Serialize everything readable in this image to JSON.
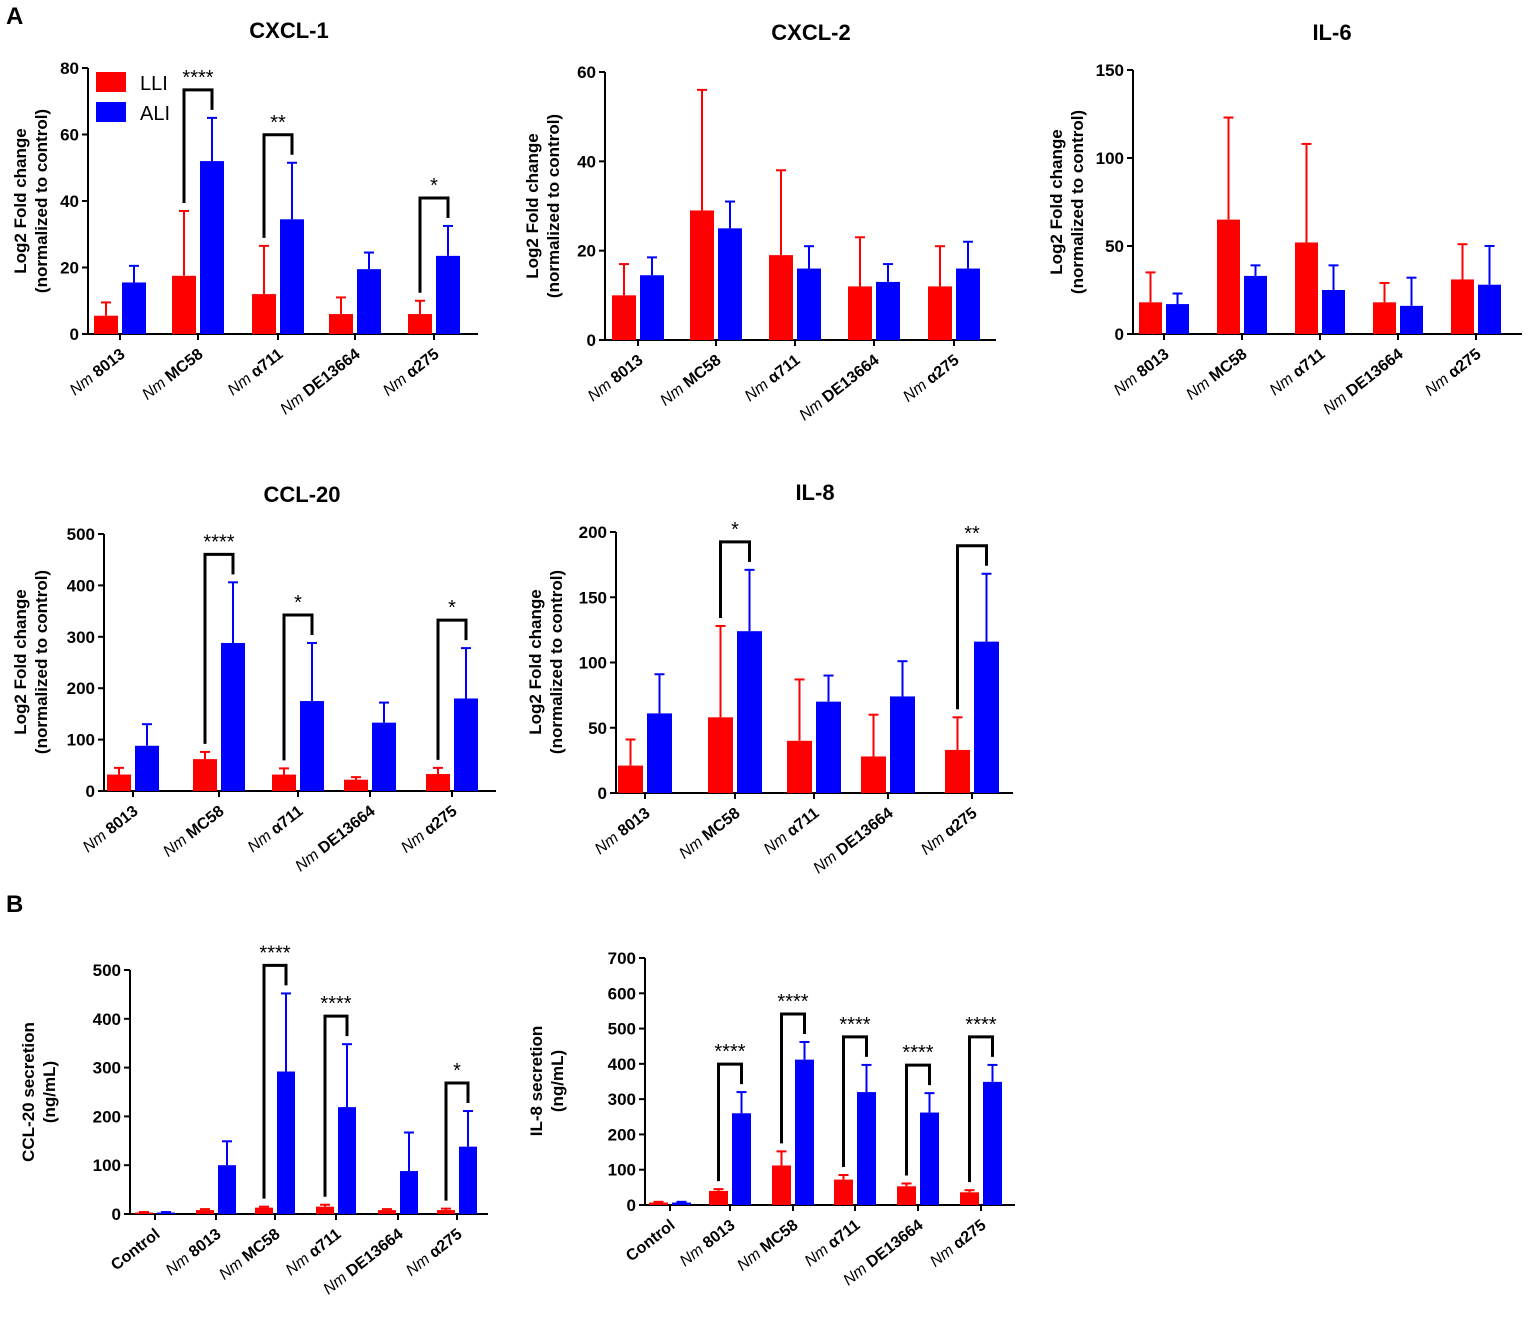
{
  "panel_labels": {
    "a": "A",
    "b": "B"
  },
  "colors": {
    "LLI": "#ff0000",
    "ALI": "#0000ff"
  },
  "legend": {
    "lli": "LLI",
    "ali": "ALI"
  },
  "chart_data": [
    {
      "id": "cxcl1",
      "type": "bar",
      "title": "CXCL-1",
      "ylabel": [
        "Log2 Fold change",
        "(normalized to control)"
      ],
      "ylim": [
        0,
        80
      ],
      "yticks": [
        0,
        20,
        40,
        60,
        80
      ],
      "categories": [
        {
          "prefix": "Nm",
          "name": "8013"
        },
        {
          "prefix": "Nm",
          "name": "MC58"
        },
        {
          "prefix": "Nm",
          "name": "α711"
        },
        {
          "prefix": "Nm",
          "name": "DE13664"
        },
        {
          "prefix": "Nm",
          "name": "α275"
        }
      ],
      "series": [
        {
          "name": "LLI",
          "values": [
            5.5,
            17.5,
            12,
            6,
            6
          ],
          "errors": [
            4,
            19.5,
            14.5,
            5,
            4
          ]
        },
        {
          "name": "ALI",
          "values": [
            15.5,
            52,
            34.5,
            19.5,
            23.5
          ],
          "errors": [
            5,
            13,
            17,
            5,
            9
          ]
        }
      ],
      "significance": [
        {
          "category": 1,
          "label": "****"
        },
        {
          "category": 2,
          "label": "**"
        },
        {
          "category": 4,
          "label": "*"
        }
      ],
      "legend": true
    },
    {
      "id": "cxcl2",
      "type": "bar",
      "title": "CXCL-2",
      "ylabel": [
        "Log2 Fold change",
        "(normalized to control)"
      ],
      "ylim": [
        0,
        60
      ],
      "yticks": [
        0,
        20,
        40,
        60
      ],
      "categories": [
        {
          "prefix": "Nm",
          "name": "8013"
        },
        {
          "prefix": "Nm",
          "name": "MC58"
        },
        {
          "prefix": "Nm",
          "name": "α711"
        },
        {
          "prefix": "Nm",
          "name": "DE13664"
        },
        {
          "prefix": "Nm",
          "name": "α275"
        }
      ],
      "series": [
        {
          "name": "LLI",
          "values": [
            10,
            29,
            19,
            12,
            12
          ],
          "errors": [
            7,
            27,
            19,
            11,
            9
          ]
        },
        {
          "name": "ALI",
          "values": [
            14.5,
            25,
            16,
            13,
            16
          ],
          "errors": [
            4,
            6,
            5,
            4,
            6
          ]
        }
      ],
      "significance": []
    },
    {
      "id": "il6",
      "type": "bar",
      "title": "IL-6",
      "ylabel": [
        "Log2 Fold change",
        "(normalized to control)"
      ],
      "ylim": [
        0,
        150
      ],
      "yticks": [
        0,
        50,
        100,
        150
      ],
      "categories": [
        {
          "prefix": "Nm",
          "name": "8013"
        },
        {
          "prefix": "Nm",
          "name": "MC58"
        },
        {
          "prefix": "Nm",
          "name": "α711"
        },
        {
          "prefix": "Nm",
          "name": "DE13664"
        },
        {
          "prefix": "Nm",
          "name": "α275"
        }
      ],
      "series": [
        {
          "name": "LLI",
          "values": [
            18,
            65,
            52,
            18,
            31
          ],
          "errors": [
            17,
            58,
            56,
            11,
            20
          ]
        },
        {
          "name": "ALI",
          "values": [
            17,
            33,
            25,
            16,
            28
          ],
          "errors": [
            6,
            6,
            14,
            16,
            22
          ]
        }
      ],
      "significance": []
    },
    {
      "id": "ccl20",
      "type": "bar",
      "title": "CCL-20",
      "ylabel": [
        "Log2 Fold change",
        "(normalized to control)"
      ],
      "ylim": [
        0,
        500
      ],
      "yticks": [
        0,
        100,
        200,
        300,
        400,
        500
      ],
      "categories": [
        {
          "prefix": "Nm",
          "name": "8013"
        },
        {
          "prefix": "Nm",
          "name": "MC58"
        },
        {
          "prefix": "Nm",
          "name": "α711"
        },
        {
          "prefix": "Nm",
          "name": "DE13664"
        },
        {
          "prefix": "Nm",
          "name": "α275"
        }
      ],
      "series": [
        {
          "name": "LLI",
          "values": [
            32,
            62,
            32,
            22,
            33
          ],
          "errors": [
            13,
            14,
            12,
            5,
            12
          ]
        },
        {
          "name": "ALI",
          "values": [
            88,
            288,
            175,
            133,
            180
          ],
          "errors": [
            42,
            118,
            113,
            39,
            98
          ]
        }
      ],
      "significance": [
        {
          "category": 1,
          "label": "****"
        },
        {
          "category": 2,
          "label": "*"
        },
        {
          "category": 4,
          "label": "*"
        }
      ]
    },
    {
      "id": "il8",
      "type": "bar",
      "title": "IL-8",
      "ylabel": [
        "Log2 Fold change",
        "(normalized to control)"
      ],
      "ylim": [
        0,
        200
      ],
      "yticks": [
        0,
        50,
        100,
        150,
        200
      ],
      "categories": [
        {
          "prefix": "Nm",
          "name": "8013"
        },
        {
          "prefix": "Nm",
          "name": "MC58"
        },
        {
          "prefix": "Nm",
          "name": "α711"
        },
        {
          "prefix": "Nm",
          "name": "DE13664"
        },
        {
          "prefix": "Nm",
          "name": "α275"
        }
      ],
      "series": [
        {
          "name": "LLI",
          "values": [
            21,
            58,
            40,
            28,
            33
          ],
          "errors": [
            20,
            70,
            47,
            32,
            25
          ]
        },
        {
          "name": "ALI",
          "values": [
            61,
            124,
            70,
            74,
            116
          ],
          "errors": [
            30,
            47,
            20,
            27,
            52
          ]
        }
      ],
      "significance": [
        {
          "category": 1,
          "label": "*"
        },
        {
          "category": 4,
          "label": "**"
        }
      ]
    },
    {
      "id": "ccl20sec",
      "type": "bar",
      "title": "",
      "ylabel": [
        "CCL-20 secretion",
        "(ng/mL)"
      ],
      "ylim": [
        0,
        500
      ],
      "yticks": [
        0,
        100,
        200,
        300,
        400,
        500
      ],
      "categories": [
        {
          "prefix": "",
          "name": "Control"
        },
        {
          "prefix": "Nm",
          "name": "8013"
        },
        {
          "prefix": "Nm",
          "name": "MC58"
        },
        {
          "prefix": "Nm",
          "name": "α711"
        },
        {
          "prefix": "Nm",
          "name": "DE13664"
        },
        {
          "prefix": "Nm",
          "name": "α275"
        }
      ],
      "series": [
        {
          "name": "LLI",
          "values": [
            3,
            8,
            13,
            15,
            8,
            8
          ],
          "errors": [
            1,
            2,
            2,
            4,
            2,
            3
          ]
        },
        {
          "name": "ALI",
          "values": [
            3,
            100,
            292,
            219,
            88,
            138
          ],
          "errors": [
            1,
            49,
            160,
            129,
            79,
            73
          ]
        }
      ],
      "significance": [
        {
          "category": 2,
          "label": "****"
        },
        {
          "category": 3,
          "label": "****"
        },
        {
          "category": 5,
          "label": "*"
        }
      ]
    },
    {
      "id": "il8sec",
      "type": "bar",
      "title": "",
      "ylabel": [
        "IL-8 secretion",
        "(ng/mL)"
      ],
      "ylim": [
        0,
        700
      ],
      "yticks": [
        0,
        100,
        200,
        300,
        400,
        500,
        600,
        700
      ],
      "categories": [
        {
          "prefix": "",
          "name": "Control"
        },
        {
          "prefix": "Nm",
          "name": "8013"
        },
        {
          "prefix": "Nm",
          "name": "MC58"
        },
        {
          "prefix": "Nm",
          "name": "α711"
        },
        {
          "prefix": "Nm",
          "name": "DE13664"
        },
        {
          "prefix": "Nm",
          "name": "α275"
        }
      ],
      "series": [
        {
          "name": "LLI",
          "values": [
            7,
            40,
            112,
            72,
            53,
            36
          ],
          "errors": [
            2,
            5,
            40,
            13,
            8,
            6
          ]
        },
        {
          "name": "ALI",
          "values": [
            7,
            260,
            412,
            320,
            262,
            349
          ],
          "errors": [
            2,
            60,
            50,
            77,
            55,
            48
          ]
        }
      ],
      "significance": [
        {
          "category": 1,
          "label": "****"
        },
        {
          "category": 2,
          "label": "****"
        },
        {
          "category": 3,
          "label": "****"
        },
        {
          "category": 4,
          "label": "****"
        },
        {
          "category": 5,
          "label": "****"
        }
      ]
    }
  ]
}
